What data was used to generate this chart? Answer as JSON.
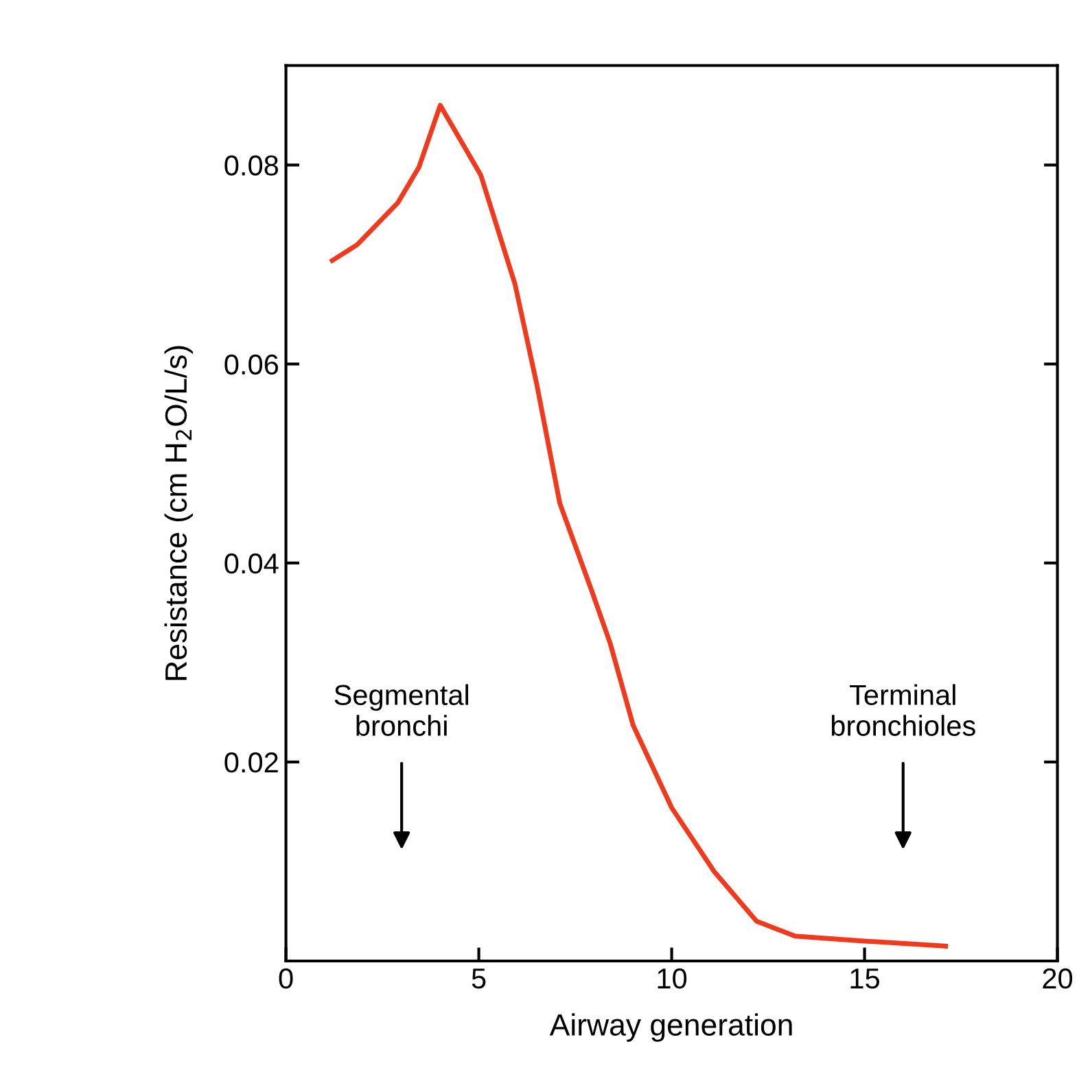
{
  "chart_data": {
    "type": "line",
    "xlabel": "Airway generation",
    "ylabel": "Resistance (cm H$_{2}$O/L/s)",
    "x": [
      1.2,
      1.85,
      2.9,
      3.45,
      4,
      5.05,
      5.94,
      6.5,
      7.1,
      7.9,
      8.4,
      9,
      10,
      11.1,
      12.2,
      13.2,
      15,
      17.1
    ],
    "series": [
      {
        "color": "#f03a1e",
        "values": [
          0.0704,
          0.072,
          0.0762,
          0.0798,
          0.086,
          0.079,
          0.068,
          0.058,
          0.046,
          0.0375,
          0.032,
          0.0237,
          0.0154,
          0.009,
          0.004,
          0.0025,
          0.002,
          0.0015
        ]
      }
    ],
    "xlim": [
      0,
      20
    ],
    "ylim": [
      0,
      0.09
    ],
    "xticks": [
      0,
      5,
      10,
      15,
      20
    ],
    "yticks": [
      0.02,
      0.04,
      0.06,
      0.08
    ],
    "grid": false,
    "legend": false,
    "marker": "none",
    "line_style": "solid",
    "annotations": [
      "Segmental\nbronchi",
      "Terminal\nbronchioles"
    ]
  }
}
